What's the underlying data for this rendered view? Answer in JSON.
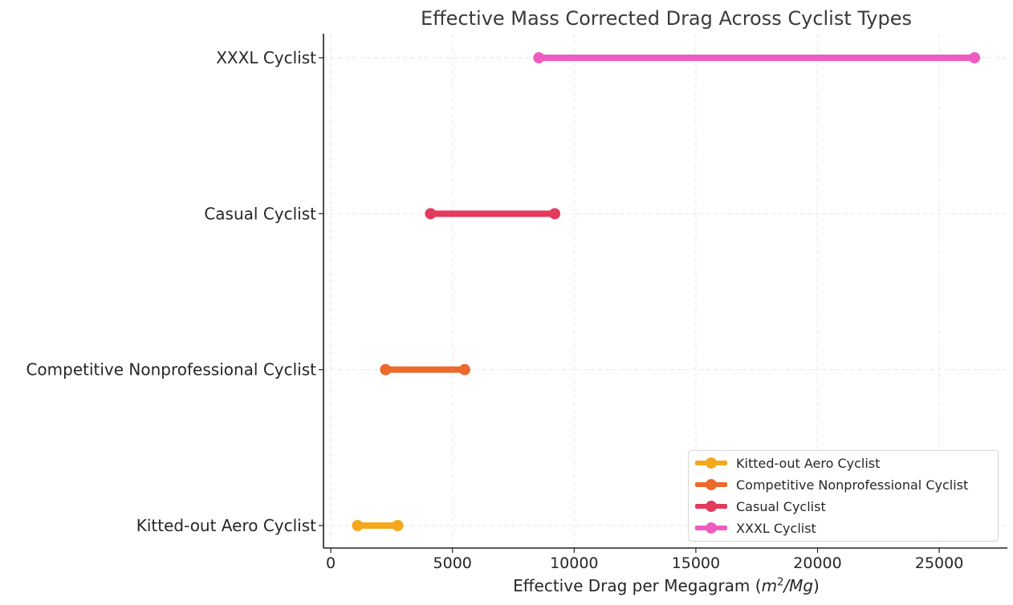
{
  "chart_data": {
    "type": "range",
    "title": "Effective Mass Corrected Drag Across Cyclist Types",
    "xlabel_prefix": "Effective Drag per Megagram (",
    "xlabel_unit_base": "m",
    "xlabel_unit_sup": "2",
    "xlabel_unit_rest": "/Mg",
    "xlabel_suffix": ")",
    "ylabel": "",
    "xlim": [
      -300,
      27800
    ],
    "xticks": [
      0,
      5000,
      10000,
      15000,
      20000,
      25000
    ],
    "xtick_labels": [
      "0",
      "5000",
      "10000",
      "15000",
      "20000",
      "25000"
    ],
    "grid": true,
    "legend_position": "lower-right",
    "categories": [
      "Kitted-out Aero Cyclist",
      "Competitive Nonprofessional Cyclist",
      "Casual Cyclist",
      "XXXL Cyclist"
    ],
    "series": [
      {
        "name": "Kitted-out Aero Cyclist",
        "min": 1100,
        "max": 2750,
        "color": "#f5a81c"
      },
      {
        "name": "Competitive Nonprofessional Cyclist",
        "min": 2250,
        "max": 5500,
        "color": "#ec6a2b"
      },
      {
        "name": "Casual Cyclist",
        "min": 4100,
        "max": 9200,
        "color": "#e43a5b"
      },
      {
        "name": "XXXL Cyclist",
        "min": 8550,
        "max": 26450,
        "color": "#ee5cc1"
      }
    ]
  }
}
